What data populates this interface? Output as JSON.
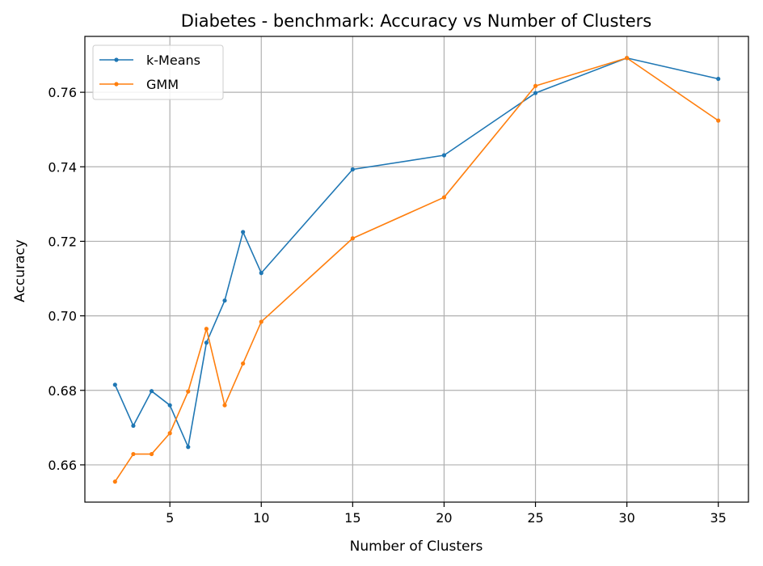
{
  "chart_data": {
    "type": "line",
    "title": "Diabetes - benchmark: Accuracy vs Number of Clusters",
    "xlabel": "Number of Clusters",
    "ylabel": "Accuracy",
    "xlim": [
      0.35,
      36.65
    ],
    "ylim": [
      0.65,
      0.775
    ],
    "xticks": [
      5,
      10,
      15,
      20,
      25,
      30,
      35
    ],
    "yticks": [
      0.66,
      0.68,
      0.7,
      0.72,
      0.74,
      0.76
    ],
    "ytick_labels": [
      "0.66",
      "0.68",
      "0.70",
      "0.72",
      "0.74",
      "0.76"
    ],
    "grid": true,
    "legend_position": "top-left",
    "series": [
      {
        "name": "k-Means",
        "color": "#1f77b4",
        "x": [
          2,
          3,
          4,
          5,
          6,
          7,
          8,
          9,
          10,
          15,
          20,
          25,
          30,
          35
        ],
        "y": [
          0.6815,
          0.6705,
          0.6798,
          0.676,
          0.6648,
          0.6928,
          0.7041,
          0.7225,
          0.7115,
          0.7393,
          0.7431,
          0.7598,
          0.7692,
          0.7636
        ]
      },
      {
        "name": "GMM",
        "color": "#ff7f0e",
        "x": [
          2,
          3,
          4,
          5,
          6,
          7,
          8,
          9,
          10,
          15,
          20,
          25,
          30,
          35
        ],
        "y": [
          0.6555,
          0.6629,
          0.6629,
          0.6685,
          0.6797,
          0.6965,
          0.676,
          0.6872,
          0.6984,
          0.7208,
          0.7318,
          0.7617,
          0.7692,
          0.7524
        ]
      }
    ]
  }
}
